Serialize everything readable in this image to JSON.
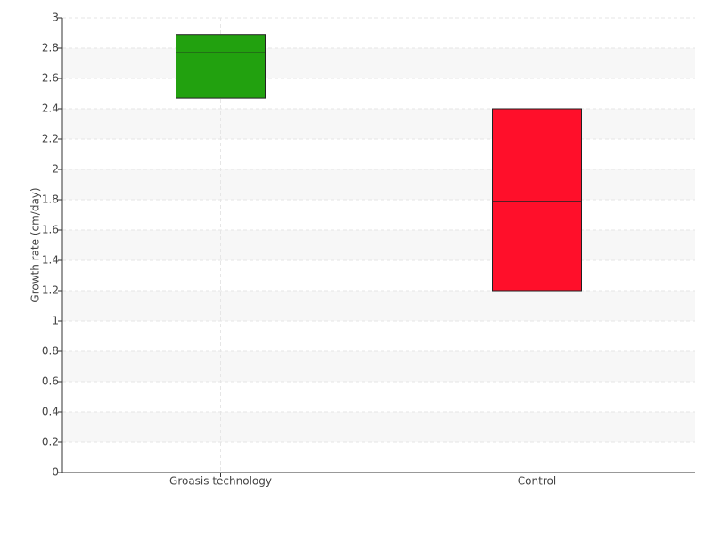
{
  "chart_data": {
    "type": "box",
    "y_label": "Growth rate (cm/day)",
    "categories": [
      "Groasis technology",
      "Control"
    ],
    "boxes": [
      {
        "low": 2.47,
        "median": 2.77,
        "high": 2.89,
        "color": "#22a10f"
      },
      {
        "low": 1.2,
        "median": 1.79,
        "high": 2.4,
        "color": "#ff0f2a"
      }
    ],
    "ylim": [
      0,
      3
    ],
    "yticks": [
      0,
      0.2,
      0.4,
      0.6,
      0.8,
      1,
      1.2,
      1.4,
      1.6,
      1.8,
      2,
      2.2,
      2.4,
      2.6,
      2.8,
      3
    ],
    "grid": true
  }
}
